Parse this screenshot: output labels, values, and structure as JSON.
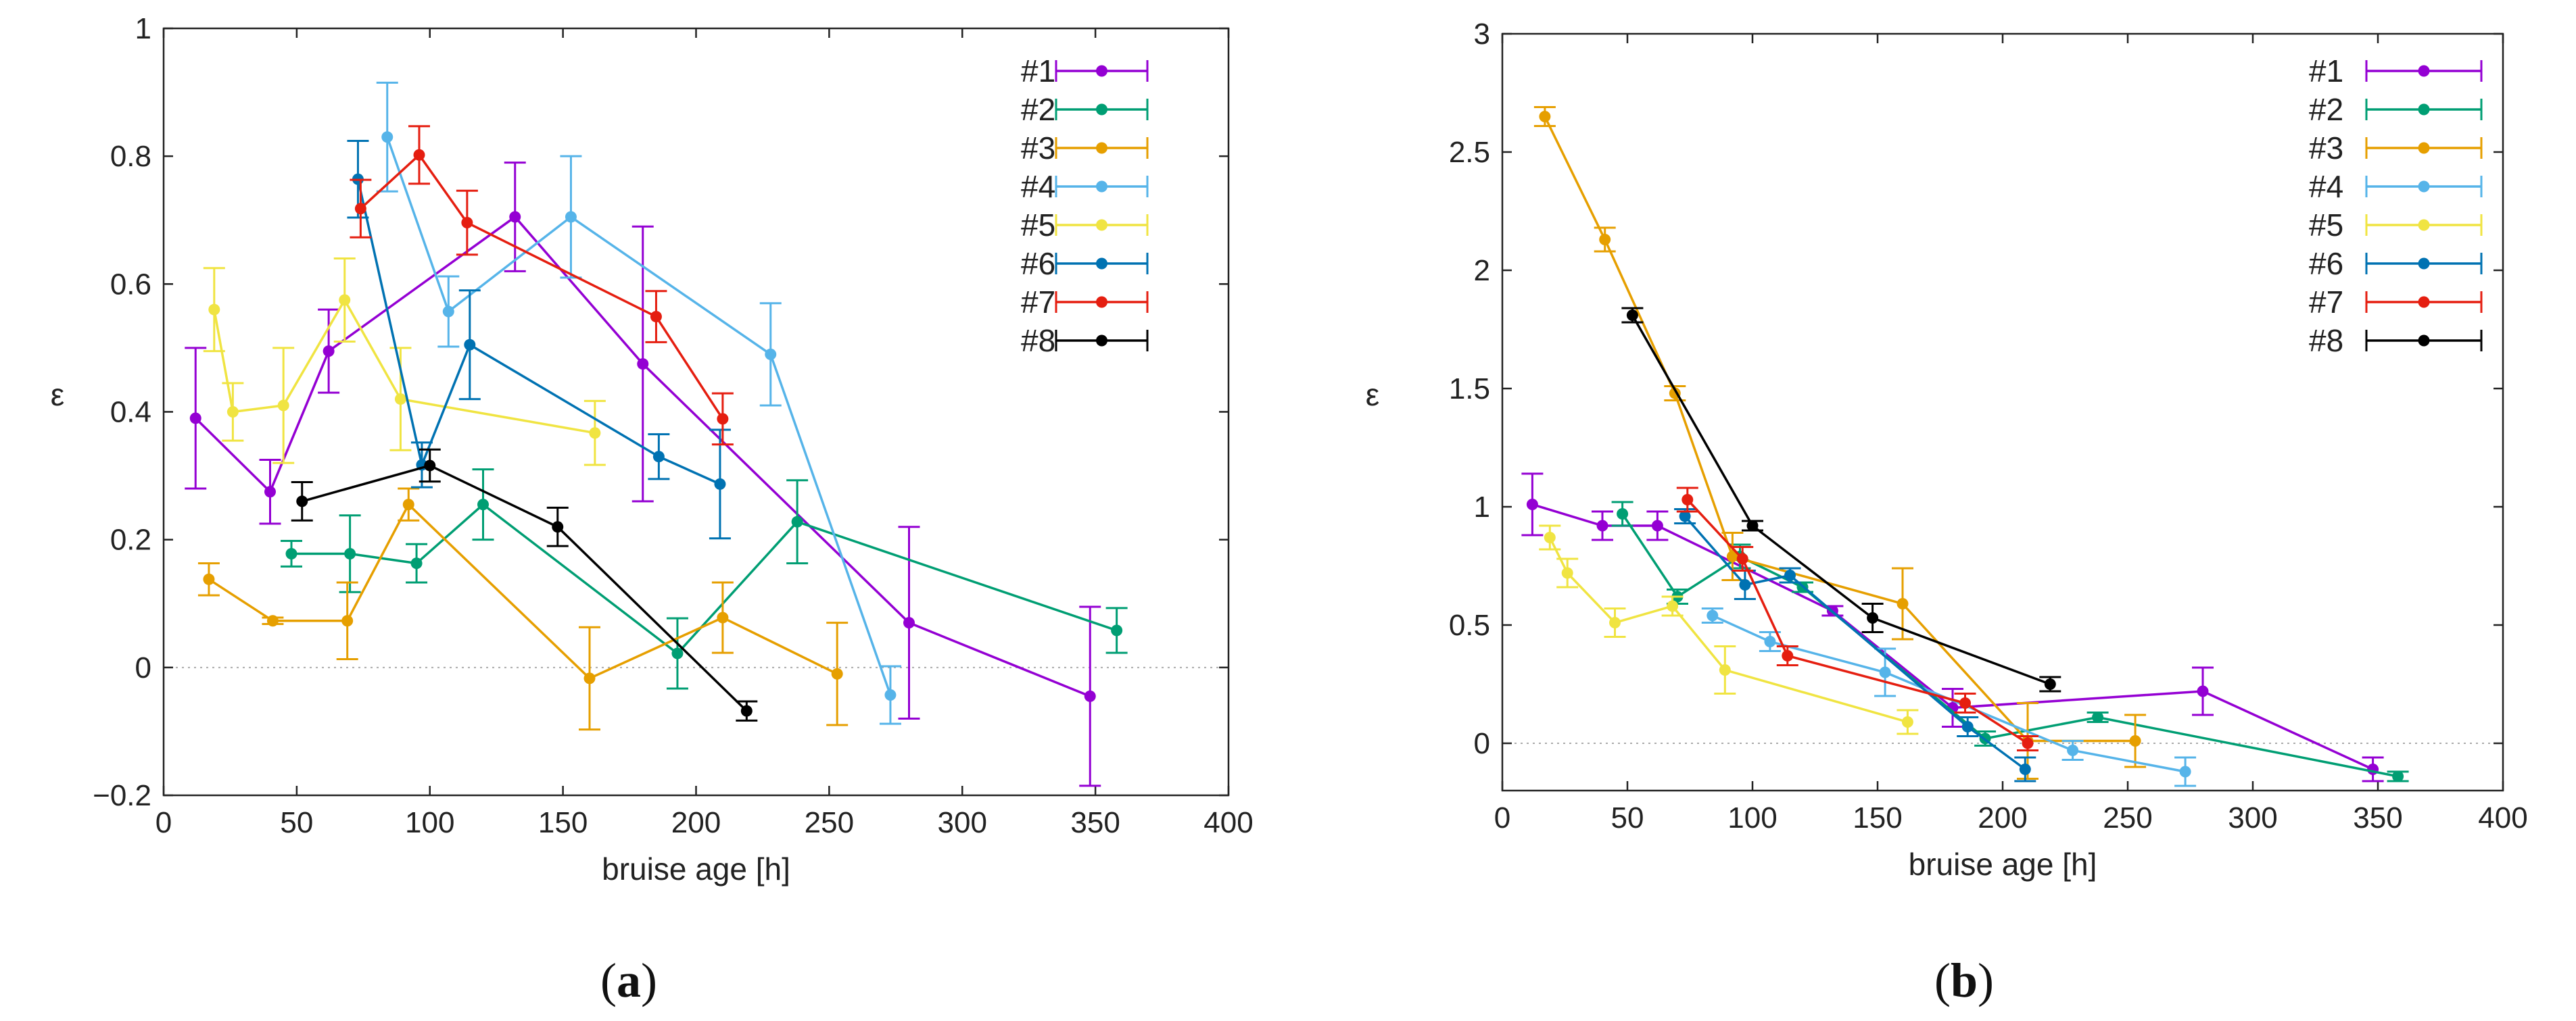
{
  "chart_data": [
    {
      "type": "line",
      "panel_label": "(a)",
      "panel_label_parts": [
        "(",
        "a",
        ")"
      ],
      "xlabel": "bruise age [h]",
      "ylabel": "ε",
      "xlim": [
        0,
        400
      ],
      "ylim": [
        -0.2,
        1
      ],
      "xticks": [
        0,
        50,
        100,
        150,
        200,
        250,
        300,
        350,
        400
      ],
      "yticks": [
        -0.2,
        0,
        0.2,
        0.4,
        0.6,
        0.8,
        1
      ],
      "ytick_labels": [
        "−0.2",
        "0",
        "0.2",
        "0.4",
        "0.6",
        "0.8",
        "1"
      ],
      "zero_line": true,
      "legend_position": "top-right",
      "series": [
        {
          "name": "#1",
          "color": "#9400d3",
          "points": [
            [
              12,
              0.39,
              0.11
            ],
            [
              40,
              0.275,
              0.05
            ],
            [
              62,
              0.495,
              0.065
            ],
            [
              132,
              0.705,
              0.085
            ],
            [
              180,
              0.475,
              0.215
            ],
            [
              280,
              0.07,
              0.15
            ],
            [
              348,
              -0.045,
              0.14
            ]
          ]
        },
        {
          "name": "#2",
          "color": "#009e73",
          "points": [
            [
              48,
              0.178,
              0.02
            ],
            [
              70,
              0.178,
              0.06
            ],
            [
              95,
              0.163,
              0.03
            ],
            [
              120,
              0.255,
              0.055
            ],
            [
              193,
              0.022,
              0.055
            ],
            [
              238,
              0.228,
              0.065
            ],
            [
              358,
              0.058,
              0.035
            ]
          ]
        },
        {
          "name": "#3",
          "color": "#e69f00",
          "points": [
            [
              17,
              0.138,
              0.025
            ],
            [
              41,
              0.073,
              0.005
            ],
            [
              69,
              0.073,
              0.06
            ],
            [
              92,
              0.255,
              0.025
            ],
            [
              160,
              -0.017,
              0.08
            ],
            [
              210,
              0.078,
              0.055
            ],
            [
              253,
              -0.01,
              0.08
            ]
          ]
        },
        {
          "name": "#4",
          "color": "#56b4e9",
          "points": [
            [
              84,
              0.83,
              0.085
            ],
            [
              107,
              0.557,
              0.055
            ],
            [
              153,
              0.705,
              0.095
            ],
            [
              228,
              0.49,
              0.08
            ],
            [
              273,
              -0.043,
              0.045
            ]
          ]
        },
        {
          "name": "#5",
          "color": "#f0e442",
          "points": [
            [
              19,
              0.56,
              0.065
            ],
            [
              26,
              0.4,
              0.045
            ],
            [
              45,
              0.41,
              0.09
            ],
            [
              68,
              0.575,
              0.065
            ],
            [
              89,
              0.42,
              0.08
            ],
            [
              162,
              0.367,
              0.05
            ]
          ]
        },
        {
          "name": "#6",
          "color": "#0072b2",
          "points": [
            [
              73,
              0.764,
              0.06
            ],
            [
              97,
              0.317,
              0.035
            ],
            [
              115,
              0.505,
              0.085
            ],
            [
              186,
              0.33,
              0.035
            ],
            [
              209,
              0.287,
              0.085
            ]
          ]
        },
        {
          "name": "#7",
          "color": "#e51e10",
          "points": [
            [
              74,
              0.718,
              0.045
            ],
            [
              96,
              0.802,
              0.045
            ],
            [
              114,
              0.696,
              0.05
            ],
            [
              185,
              0.549,
              0.04
            ],
            [
              210,
              0.389,
              0.04
            ]
          ]
        },
        {
          "name": "#8",
          "color": "#000000",
          "points": [
            [
              52,
              0.26,
              0.03
            ],
            [
              100,
              0.316,
              0.025
            ],
            [
              148,
              0.22,
              0.03
            ],
            [
              219,
              -0.068,
              0.015
            ]
          ]
        }
      ]
    },
    {
      "type": "line",
      "panel_label": "(b)",
      "panel_label_parts": [
        "(",
        "b",
        ")"
      ],
      "xlabel": "bruise age [h]",
      "ylabel": "ε",
      "xlim": [
        0,
        400
      ],
      "ylim": [
        -0.2,
        3
      ],
      "xticks": [
        0,
        50,
        100,
        150,
        200,
        250,
        300,
        350,
        400
      ],
      "yticks": [
        0,
        0.5,
        1,
        1.5,
        2,
        2.5,
        3
      ],
      "ytick_labels": [
        "0",
        "0.5",
        "1",
        "1.5",
        "2",
        "2.5",
        "3"
      ],
      "zero_line": true,
      "legend_position": "top-right",
      "series": [
        {
          "name": "#1",
          "color": "#9400d3",
          "points": [
            [
              12,
              1.01,
              0.13
            ],
            [
              40,
              0.92,
              0.06
            ],
            [
              62,
              0.92,
              0.06
            ],
            [
              132,
              0.56,
              0.02
            ],
            [
              180,
              0.15,
              0.08
            ],
            [
              280,
              0.22,
              0.1
            ],
            [
              348,
              -0.11,
              0.05
            ]
          ]
        },
        {
          "name": "#2",
          "color": "#009e73",
          "points": [
            [
              48,
              0.97,
              0.05
            ],
            [
              70,
              0.62,
              0.03
            ],
            [
              95,
              0.79,
              0.05
            ],
            [
              120,
              0.66,
              0.02
            ],
            [
              193,
              0.02,
              0.03
            ],
            [
              238,
              0.11,
              0.02
            ],
            [
              358,
              -0.14,
              0.02
            ]
          ]
        },
        {
          "name": "#3",
          "color": "#e69f00",
          "points": [
            [
              17,
              2.65,
              0.04
            ],
            [
              41,
              2.13,
              0.05
            ],
            [
              69,
              1.48,
              0.03
            ],
            [
              92,
              0.79,
              0.1
            ],
            [
              160,
              0.59,
              0.15
            ],
            [
              210,
              0.01,
              0.16
            ],
            [
              253,
              0.01,
              0.11
            ]
          ]
        },
        {
          "name": "#4",
          "color": "#56b4e9",
          "points": [
            [
              84,
              0.54,
              0.03
            ],
            [
              107,
              0.43,
              0.04
            ],
            [
              153,
              0.3,
              0.1
            ],
            [
              228,
              -0.03,
              0.04
            ],
            [
              273,
              -0.12,
              0.06
            ]
          ]
        },
        {
          "name": "#5",
          "color": "#f0e442",
          "points": [
            [
              19,
              0.87,
              0.05
            ],
            [
              26,
              0.72,
              0.06
            ],
            [
              45,
              0.51,
              0.06
            ],
            [
              68,
              0.58,
              0.04
            ],
            [
              89,
              0.31,
              0.1
            ],
            [
              162,
              0.09,
              0.05
            ]
          ]
        },
        {
          "name": "#6",
          "color": "#0072b2",
          "points": [
            [
              73,
              0.96,
              0.03
            ],
            [
              97,
              0.67,
              0.06
            ],
            [
              115,
              0.71,
              0.03
            ],
            [
              186,
              0.07,
              0.04
            ],
            [
              209,
              -0.11,
              0.05
            ]
          ]
        },
        {
          "name": "#7",
          "color": "#e51e10",
          "points": [
            [
              74,
              1.03,
              0.05
            ],
            [
              96,
              0.78,
              0.05
            ],
            [
              114,
              0.37,
              0.04
            ],
            [
              185,
              0.17,
              0.04
            ],
            [
              210,
              0.0,
              0.03
            ]
          ]
        },
        {
          "name": "#8",
          "color": "#000000",
          "points": [
            [
              52,
              1.81,
              0.03
            ],
            [
              100,
              0.92,
              0.02
            ],
            [
              148,
              0.53,
              0.06
            ],
            [
              219,
              0.25,
              0.03
            ]
          ]
        }
      ]
    }
  ]
}
